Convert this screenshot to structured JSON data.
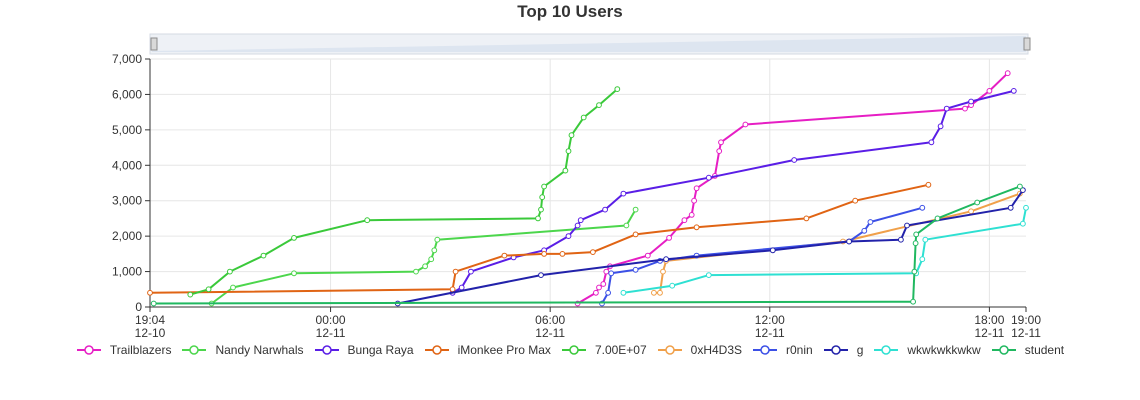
{
  "chart_data": {
    "type": "line",
    "title": "Top 10 Users",
    "xlabel": "",
    "ylabel": "",
    "ylim": [
      0,
      7000
    ],
    "xlim": [
      "2023-12-10T19:04",
      "2023-12-11T19:00"
    ],
    "yticks": [
      "0",
      "1,000",
      "2,000",
      "3,000",
      "4,000",
      "5,000",
      "6,000",
      "7,000"
    ],
    "xticks": [
      {
        "x": "2023-12-10T19:04",
        "line1": "19:04",
        "line2": "12-10"
      },
      {
        "x": "2023-12-11T00:00",
        "line1": "00:00",
        "line2": "12-11"
      },
      {
        "x": "2023-12-11T06:00",
        "line1": "06:00",
        "line2": "12-11"
      },
      {
        "x": "2023-12-11T12:00",
        "line1": "12:00",
        "line2": "12-11"
      },
      {
        "x": "2023-12-11T18:00",
        "line1": "18:00",
        "line2": "12-11"
      },
      {
        "x": "2023-12-11T19:00",
        "line1": "19:00",
        "line2": "12-11"
      }
    ],
    "grid": true,
    "legend_position": "bottom",
    "range_slider": true,
    "series": [
      {
        "name": "Trailblazers",
        "color": "#e61ec4",
        "points": [
          [
            "2023-12-11T06:45",
            100
          ],
          [
            "2023-12-11T07:15",
            400
          ],
          [
            "2023-12-11T07:20",
            550
          ],
          [
            "2023-12-11T07:27",
            650
          ],
          [
            "2023-12-11T07:32",
            1000
          ],
          [
            "2023-12-11T07:38",
            1150
          ],
          [
            "2023-12-11T08:40",
            1450
          ],
          [
            "2023-12-11T09:15",
            1950
          ],
          [
            "2023-12-11T09:40",
            2450
          ],
          [
            "2023-12-11T09:52",
            2600
          ],
          [
            "2023-12-11T09:56",
            3000
          ],
          [
            "2023-12-11T10:00",
            3350
          ],
          [
            "2023-12-11T10:30",
            3700
          ],
          [
            "2023-12-11T10:37",
            4400
          ],
          [
            "2023-12-11T10:40",
            4650
          ],
          [
            "2023-12-11T11:20",
            5150
          ],
          [
            "2023-12-11T17:20",
            5600
          ],
          [
            "2023-12-11T17:30",
            5700
          ],
          [
            "2023-12-11T18:00",
            6100
          ],
          [
            "2023-12-11T18:30",
            6600
          ]
        ]
      },
      {
        "name": "Nandy Narwhals",
        "color": "#4cd64c",
        "points": [
          [
            "2023-12-10T20:45",
            100
          ],
          [
            "2023-12-10T21:20",
            550
          ],
          [
            "2023-12-10T23:00",
            950
          ],
          [
            "2023-12-11T02:20",
            1000
          ],
          [
            "2023-12-11T02:35",
            1150
          ],
          [
            "2023-12-11T02:45",
            1350
          ],
          [
            "2023-12-11T02:50",
            1600
          ],
          [
            "2023-12-11T02:55",
            1900
          ],
          [
            "2023-12-11T08:05",
            2300
          ],
          [
            "2023-12-11T08:20",
            2750
          ]
        ]
      },
      {
        "name": "Bunga Raya",
        "color": "#5a1ee6",
        "points": [
          [
            "2023-12-11T03:20",
            400
          ],
          [
            "2023-12-11T03:35",
            550
          ],
          [
            "2023-12-11T03:50",
            1000
          ],
          [
            "2023-12-11T05:00",
            1400
          ],
          [
            "2023-12-11T05:50",
            1600
          ],
          [
            "2023-12-11T06:30",
            2000
          ],
          [
            "2023-12-11T06:45",
            2300
          ],
          [
            "2023-12-11T06:50",
            2450
          ],
          [
            "2023-12-11T07:30",
            2750
          ],
          [
            "2023-12-11T08:00",
            3200
          ],
          [
            "2023-12-11T10:20",
            3650
          ],
          [
            "2023-12-11T12:40",
            4150
          ],
          [
            "2023-12-11T16:25",
            4650
          ],
          [
            "2023-12-11T16:40",
            5100
          ],
          [
            "2023-12-11T16:50",
            5600
          ],
          [
            "2023-12-11T17:30",
            5800
          ],
          [
            "2023-12-11T18:40",
            6100
          ]
        ]
      },
      {
        "name": "iMonkee Pro Max",
        "color": "#e06414",
        "points": [
          [
            "2023-12-10T19:04",
            400
          ],
          [
            "2023-12-11T03:20",
            500
          ],
          [
            "2023-12-11T03:25",
            1000
          ],
          [
            "2023-12-11T04:45",
            1450
          ],
          [
            "2023-12-11T05:50",
            1500
          ],
          [
            "2023-12-11T06:20",
            1500
          ],
          [
            "2023-12-11T07:10",
            1550
          ],
          [
            "2023-12-11T08:20",
            2050
          ],
          [
            "2023-12-11T10:00",
            2250
          ],
          [
            "2023-12-11T13:00",
            2500
          ],
          [
            "2023-12-11T14:20",
            3000
          ],
          [
            "2023-12-11T16:20",
            3450
          ]
        ]
      },
      {
        "name": "7.00E+07",
        "color": "#3ac93a",
        "points": [
          [
            "2023-12-10T20:10",
            350
          ],
          [
            "2023-12-10T20:40",
            500
          ],
          [
            "2023-12-10T21:15",
            1000
          ],
          [
            "2023-12-10T22:10",
            1450
          ],
          [
            "2023-12-10T23:00",
            1950
          ],
          [
            "2023-12-11T01:00",
            2450
          ],
          [
            "2023-12-11T05:40",
            2500
          ],
          [
            "2023-12-11T05:45",
            2750
          ],
          [
            "2023-12-11T05:47",
            3100
          ],
          [
            "2023-12-11T05:50",
            3400
          ],
          [
            "2023-12-11T06:25",
            3850
          ],
          [
            "2023-12-11T06:30",
            4400
          ],
          [
            "2023-12-11T06:35",
            4850
          ],
          [
            "2023-12-11T06:55",
            5350
          ],
          [
            "2023-12-11T07:20",
            5700
          ],
          [
            "2023-12-11T07:50",
            6150
          ]
        ]
      },
      {
        "name": "0xH4D3S",
        "color": "#f0a04a",
        "points": [
          [
            "2023-12-11T08:50",
            400
          ],
          [
            "2023-12-11T09:00",
            400
          ],
          [
            "2023-12-11T09:05",
            1000
          ],
          [
            "2023-12-11T09:10",
            1300
          ],
          [
            "2023-12-11T14:00",
            1850
          ],
          [
            "2023-12-11T17:30",
            2700
          ],
          [
            "2023-12-11T18:50",
            3200
          ]
        ]
      },
      {
        "name": "r0nin",
        "color": "#3c50e6",
        "points": [
          [
            "2023-12-11T07:25",
            100
          ],
          [
            "2023-12-11T07:35",
            400
          ],
          [
            "2023-12-11T07:40",
            950
          ],
          [
            "2023-12-11T08:20",
            1050
          ],
          [
            "2023-12-11T09:00",
            1300
          ],
          [
            "2023-12-11T10:00",
            1450
          ],
          [
            "2023-12-11T14:10",
            1850
          ],
          [
            "2023-12-11T14:35",
            2150
          ],
          [
            "2023-12-11T14:45",
            2400
          ],
          [
            "2023-12-11T16:10",
            2800
          ]
        ]
      },
      {
        "name": "g",
        "color": "#2222aa",
        "points": [
          [
            "2023-12-11T01:50",
            100
          ],
          [
            "2023-12-11T05:45",
            900
          ],
          [
            "2023-12-11T09:10",
            1350
          ],
          [
            "2023-12-11T12:05",
            1600
          ],
          [
            "2023-12-11T14:10",
            1850
          ],
          [
            "2023-12-11T15:35",
            1900
          ],
          [
            "2023-12-11T15:45",
            2300
          ],
          [
            "2023-12-11T18:35",
            2800
          ],
          [
            "2023-12-11T18:55",
            3300
          ]
        ]
      },
      {
        "name": "wkwkwkkwkw",
        "color": "#2ee0d2",
        "points": [
          [
            "2023-12-11T08:00",
            400
          ],
          [
            "2023-12-11T09:20",
            600
          ],
          [
            "2023-12-11T10:20",
            900
          ],
          [
            "2023-12-11T16:00",
            950
          ],
          [
            "2023-12-11T16:10",
            1350
          ],
          [
            "2023-12-11T16:15",
            1900
          ],
          [
            "2023-12-11T18:55",
            2350
          ],
          [
            "2023-12-11T19:00",
            2800
          ]
        ]
      },
      {
        "name": "student",
        "color": "#20b860",
        "points": [
          [
            "2023-12-10T19:10",
            100
          ],
          [
            "2023-12-11T15:55",
            150
          ],
          [
            "2023-12-11T15:57",
            1000
          ],
          [
            "2023-12-11T15:59",
            1800
          ],
          [
            "2023-12-11T16:00",
            2050
          ],
          [
            "2023-12-11T16:35",
            2500
          ],
          [
            "2023-12-11T17:40",
            2950
          ],
          [
            "2023-12-11T18:50",
            3400
          ]
        ]
      }
    ]
  }
}
